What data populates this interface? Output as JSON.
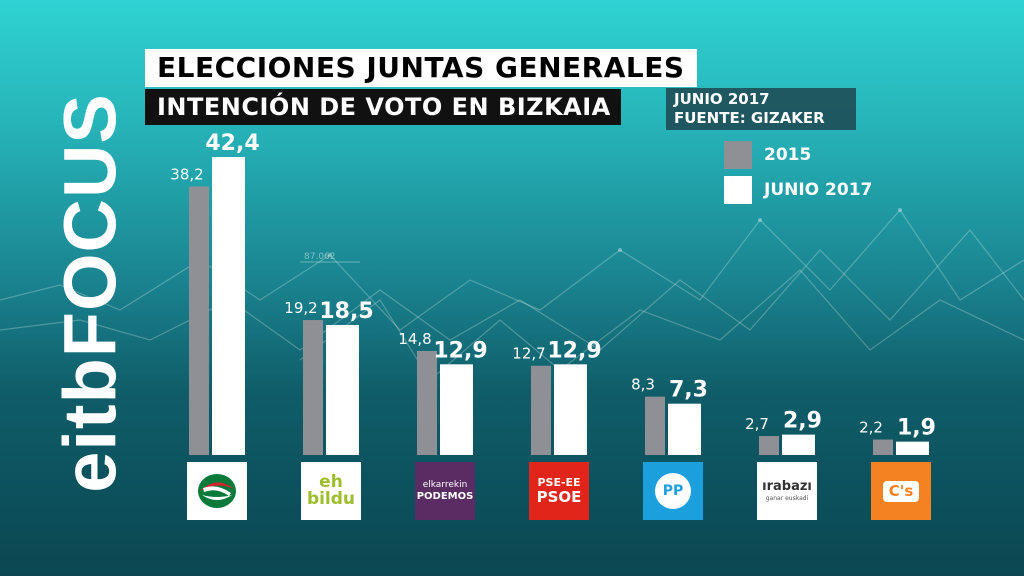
{
  "header": {
    "title_line1": "ELECCIONES JUNTAS GENERALES",
    "title_line2": "INTENCIÓN DE VOTO EN BIZKAIA",
    "date": "JUNIO 2017",
    "source": "FUENTE: GIZAKER"
  },
  "branding": {
    "logo_text": "eitbFOCUS"
  },
  "background_number": "87.062",
  "colors": {
    "series_2015": "#8f9096",
    "series_2017": "#ffffff",
    "accent": "#2fd3d2"
  },
  "parties": [
    {
      "name": "eaj-pnv",
      "logo_lines": []
    },
    {
      "name": "eh-bildu",
      "logo_lines": [
        "eh",
        "bildu"
      ]
    },
    {
      "name": "elkarrekin-podemos",
      "logo_lines": [
        "elkarrekin",
        "PODEMOS"
      ]
    },
    {
      "name": "pse-ee-psoe",
      "logo_lines": [
        "PSE-EE",
        "PSOE"
      ]
    },
    {
      "name": "pp",
      "logo_lines": [
        "PP"
      ]
    },
    {
      "name": "irabazi",
      "logo_lines": [
        "ırabazı",
        "ganar euskadi"
      ]
    },
    {
      "name": "ciudadanos",
      "logo_lines": [
        "C's"
      ]
    }
  ],
  "chart_data": {
    "type": "bar",
    "title": "INTENCIÓN DE VOTO EN BIZKAIA",
    "categories": [
      "EAJ-PNV",
      "EH Bildu",
      "Elkarrekin Podemos",
      "PSE-EE PSOE",
      "PP",
      "Irabazi",
      "C's"
    ],
    "series": [
      {
        "name": "2015",
        "values": [
          38.2,
          19.2,
          14.8,
          12.7,
          8.3,
          2.7,
          2.2
        ],
        "labels": [
          "38,2",
          "19,2",
          "14,8",
          "12,7",
          "8,3",
          "2,7",
          "2,2"
        ]
      },
      {
        "name": "JUNIO 2017",
        "values": [
          42.4,
          18.5,
          12.9,
          12.9,
          7.3,
          2.9,
          1.9
        ],
        "labels": [
          "42,4",
          "18,5",
          "12,9",
          "12,9",
          "7,3",
          "2,9",
          "1,9"
        ]
      }
    ],
    "ylim": [
      0,
      45
    ],
    "legend": "top-right"
  }
}
